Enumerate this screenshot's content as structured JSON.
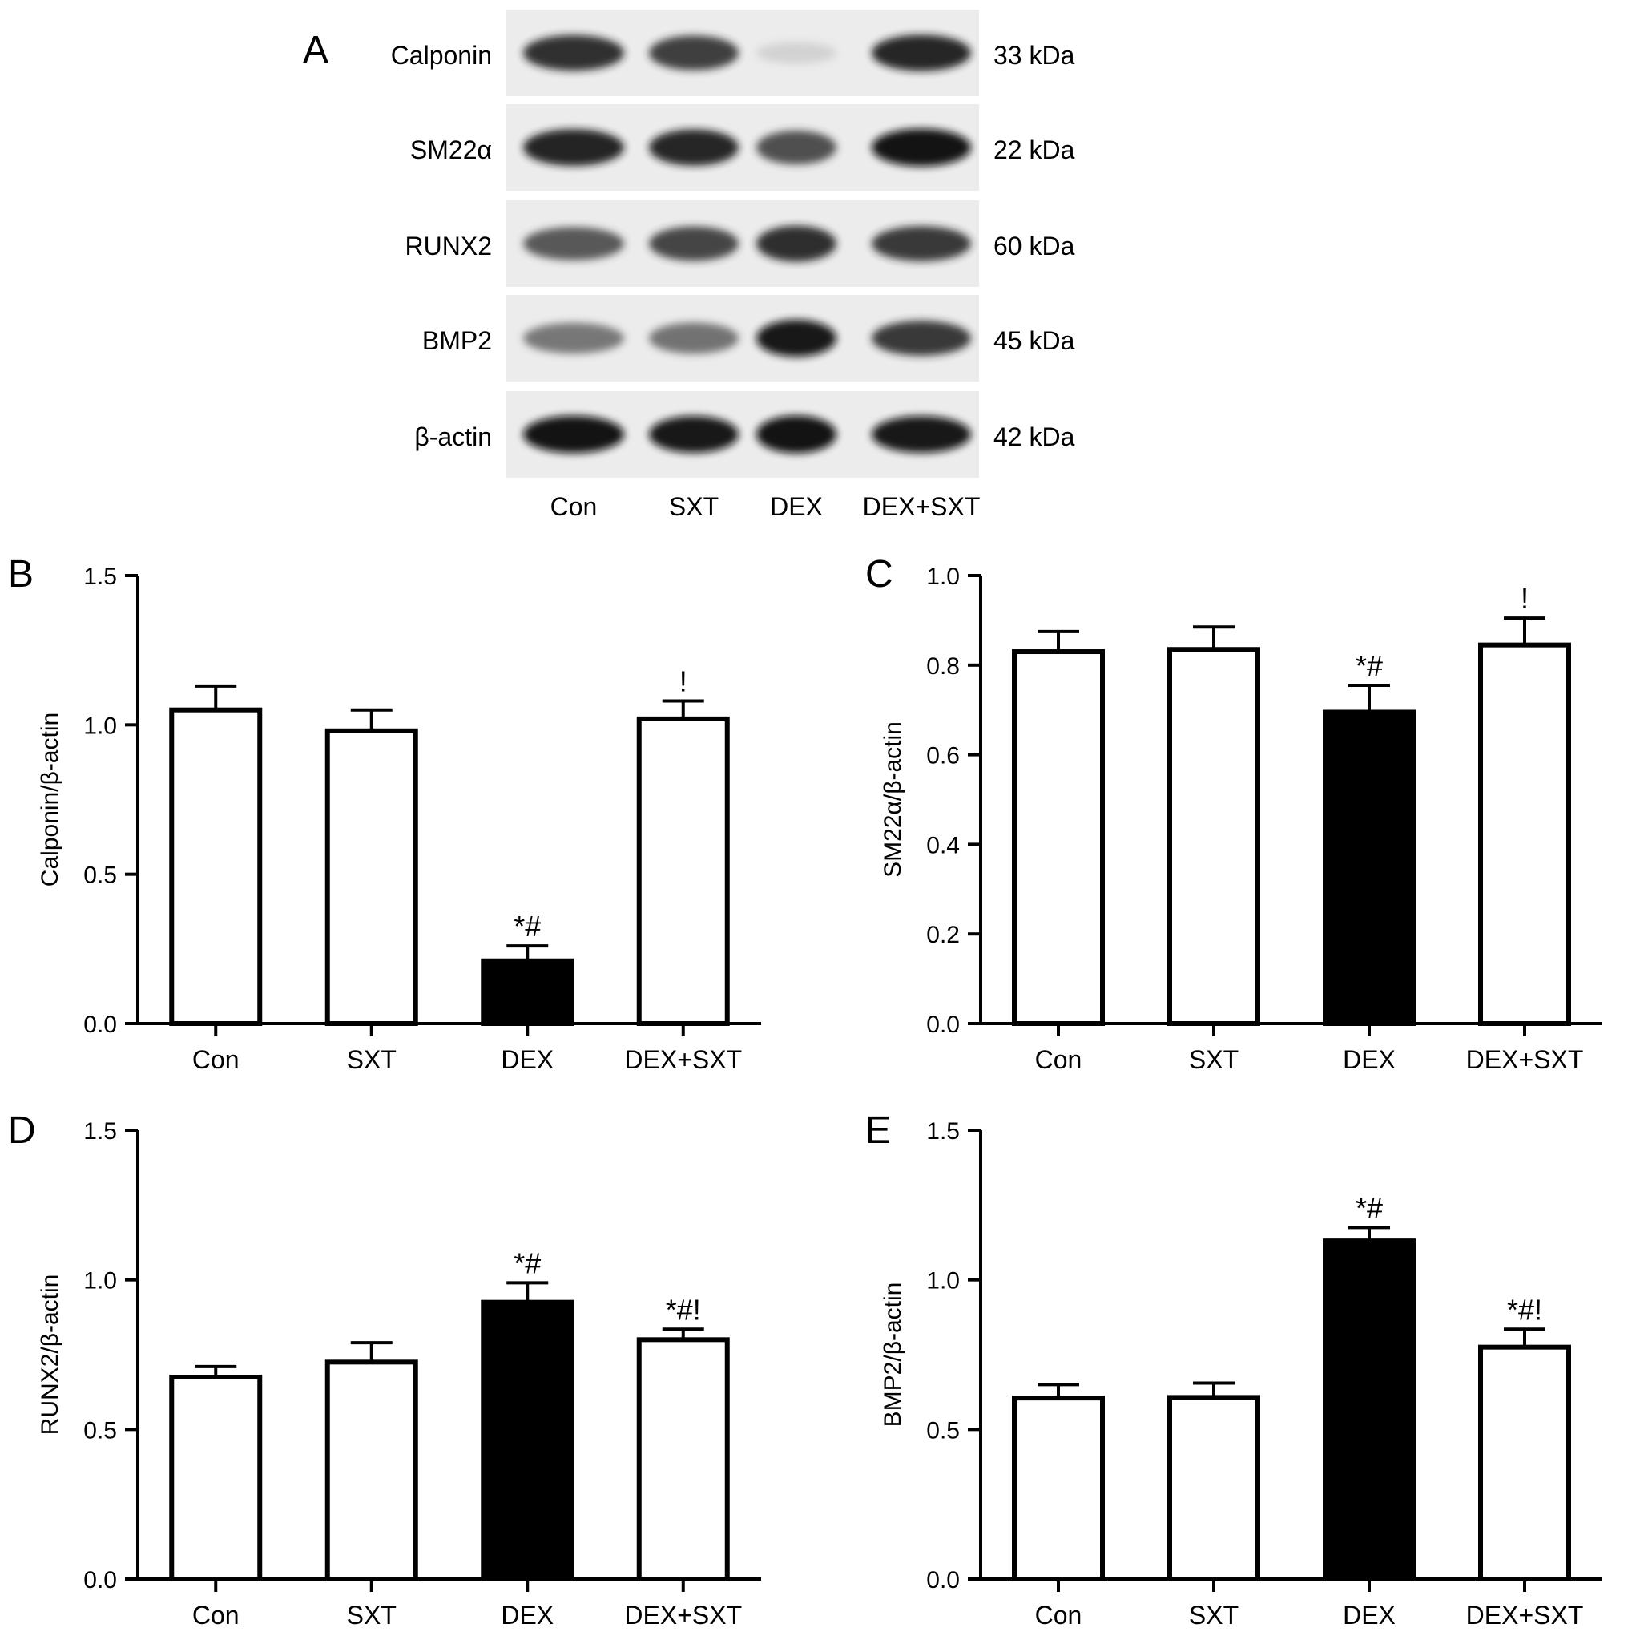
{
  "blot": {
    "panel_letter": "A",
    "lanes": [
      "Con",
      "SXT",
      "DEX",
      "DEX+SXT"
    ],
    "rows": [
      {
        "protein": "Calponin",
        "size": "33 kDa",
        "intensity": [
          0.85,
          0.8,
          0.12,
          0.88
        ]
      },
      {
        "protein": "SM22α",
        "size": "22 kDa",
        "intensity": [
          0.9,
          0.88,
          0.75,
          0.95
        ]
      },
      {
        "protein": "RUNX2",
        "size": "60 kDa",
        "intensity": [
          0.72,
          0.78,
          0.86,
          0.82
        ]
      },
      {
        "protein": "BMP2",
        "size": "45 kDa",
        "intensity": [
          0.6,
          0.62,
          0.92,
          0.82
        ]
      },
      {
        "protein": "β-actin",
        "size": "42 kDa",
        "intensity": [
          0.95,
          0.92,
          0.96,
          0.92
        ]
      }
    ]
  },
  "chart_data": [
    {
      "panel": "B",
      "type": "bar",
      "categories": [
        "Con",
        "SXT",
        "DEX",
        "DEX+SXT"
      ],
      "values": [
        1.05,
        0.98,
        0.21,
        1.02
      ],
      "errors": [
        0.08,
        0.07,
        0.05,
        0.06
      ],
      "fills": [
        "#ffffff",
        "#ffffff",
        "#000000",
        "#ffffff"
      ],
      "annotations": [
        "",
        "",
        "*#",
        "!"
      ],
      "ylabel": "Calponin/β-actin",
      "ylim": [
        0,
        1.5
      ],
      "yticks": [
        "0.0",
        "0.5",
        "1.0",
        "1.5"
      ]
    },
    {
      "panel": "C",
      "type": "bar",
      "categories": [
        "Con",
        "SXT",
        "DEX",
        "DEX+SXT"
      ],
      "values": [
        0.83,
        0.835,
        0.695,
        0.845
      ],
      "errors": [
        0.045,
        0.05,
        0.06,
        0.06
      ],
      "fills": [
        "#ffffff",
        "#ffffff",
        "#000000",
        "#ffffff"
      ],
      "annotations": [
        "",
        "",
        "*#",
        "!"
      ],
      "ylabel": "SM22α/β-actin",
      "ylim": [
        0,
        1.0
      ],
      "yticks": [
        "0.0",
        "0.2",
        "0.4",
        "0.6",
        "0.8",
        "1.0"
      ]
    },
    {
      "panel": "D",
      "type": "bar",
      "categories": [
        "Con",
        "SXT",
        "DEX",
        "DEX+SXT"
      ],
      "values": [
        0.675,
        0.725,
        0.925,
        0.8
      ],
      "errors": [
        0.035,
        0.065,
        0.065,
        0.035
      ],
      "fills": [
        "#ffffff",
        "#ffffff",
        "#000000",
        "#ffffff"
      ],
      "annotations": [
        "",
        "",
        "*#",
        "*#!"
      ],
      "ylabel": "RUNX2/β-actin",
      "ylim": [
        0,
        1.5
      ],
      "yticks": [
        "0.0",
        "0.5",
        "1.0",
        "1.5"
      ]
    },
    {
      "panel": "E",
      "type": "bar",
      "categories": [
        "Con",
        "SXT",
        "DEX",
        "DEX+SXT"
      ],
      "values": [
        0.605,
        0.607,
        1.13,
        0.775
      ],
      "errors": [
        0.045,
        0.048,
        0.045,
        0.06
      ],
      "fills": [
        "#ffffff",
        "#ffffff",
        "#000000",
        "#ffffff"
      ],
      "annotations": [
        "",
        "",
        "*#",
        "*#!"
      ],
      "ylabel": "BMP2/β-actin",
      "ylim": [
        0,
        1.5
      ],
      "yticks": [
        "0.0",
        "0.5",
        "1.0",
        "1.5"
      ]
    }
  ]
}
